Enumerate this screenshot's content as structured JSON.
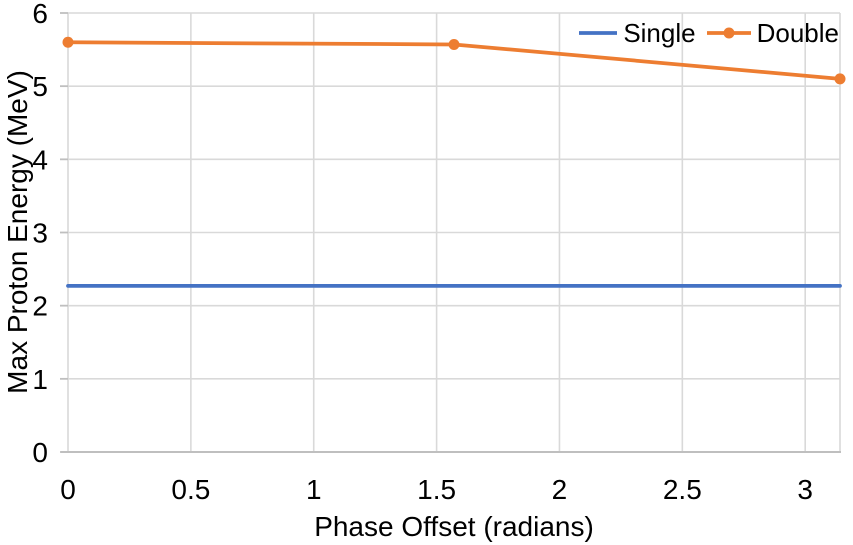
{
  "chart_data": {
    "type": "line",
    "title": "",
    "xlabel": "Phase Offset (radians)",
    "ylabel": "Max Proton Energy (MeV)",
    "xlim": [
      0,
      3.1416
    ],
    "ylim": [
      0,
      6
    ],
    "x_ticks": [
      0,
      0.5,
      1,
      1.5,
      2,
      2.5,
      3
    ],
    "x_tick_labels": [
      "0",
      "0.5",
      "1",
      "1.5",
      "2",
      "2.5",
      "3"
    ],
    "y_ticks": [
      0,
      1,
      2,
      3,
      4,
      5,
      6
    ],
    "y_tick_labels": [
      "0",
      "1",
      "2",
      "3",
      "4",
      "5",
      "6"
    ],
    "grid": true,
    "legend": {
      "position": "top-right-inside",
      "entries": [
        "Single",
        "Double"
      ]
    },
    "series": [
      {
        "name": "Single",
        "color": "#4472C4",
        "marker": "none",
        "x": [
          0,
          3.1416
        ],
        "y": [
          2.27,
          2.27
        ]
      },
      {
        "name": "Double",
        "color": "#ED7D31",
        "marker": "circle",
        "x": [
          0,
          1.5708,
          3.1416
        ],
        "y": [
          5.6,
          5.57,
          5.1
        ]
      }
    ],
    "colors": {
      "gridline": "#d9d9d9",
      "axis": "#bfbfbf",
      "text": "#000000"
    }
  }
}
